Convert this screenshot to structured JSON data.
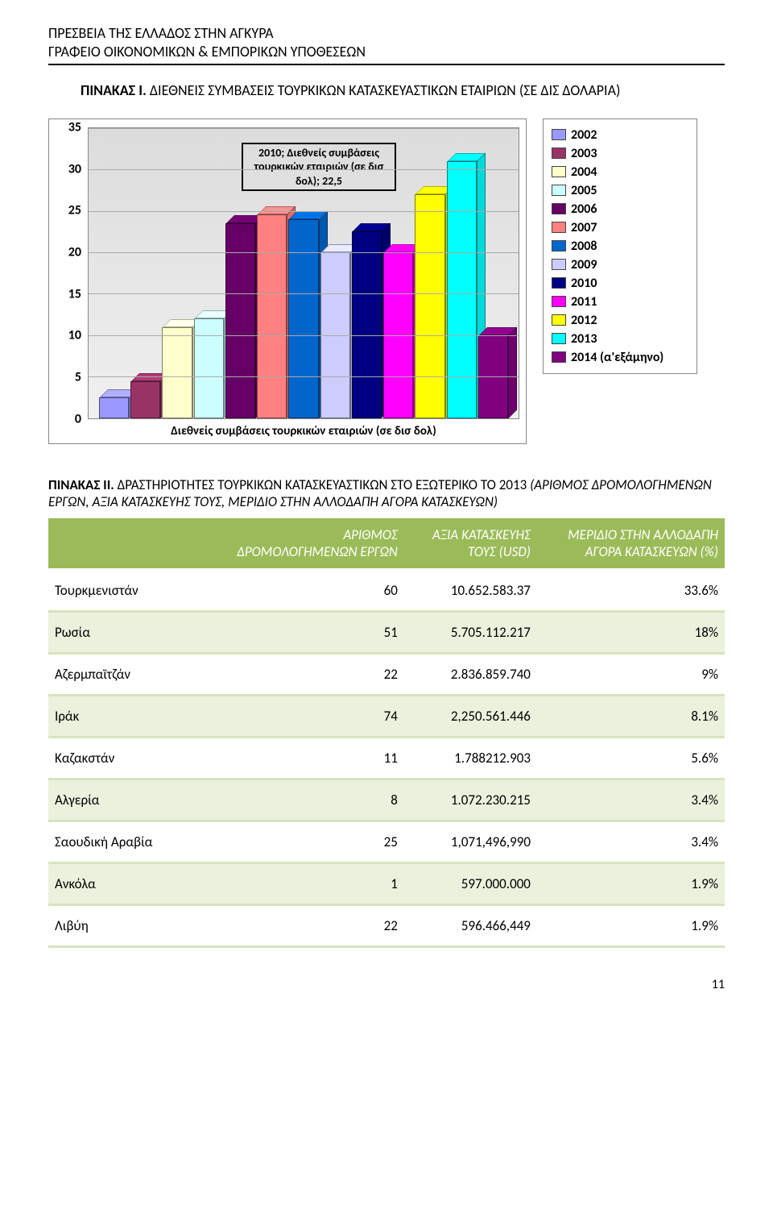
{
  "header": {
    "line1": "ΠΡΕΣΒΕΙΑ ΤΗΣ ΕΛΛΑΔΟΣ ΣΤΗΝ ΑΓΚΥΡΑ",
    "line2": "ΓΡΑΦΕΙΟ ΟΙΚΟΝΟΜΙΚΩΝ & ΕΜΠΟΡΙΚΩΝ ΥΠΟΘΕΣΕΩΝ"
  },
  "chart_section": {
    "title_lead": "ΠΙΝΑΚΑΣ I. ",
    "title_rest": "ΔΙΕΘΝΕΙΣ ΣΥΜΒΑΣΕΙΣ ΤΟΥΡΚΙΚΩΝ ΚΑΤΑΣΚΕΥΑΣΤΙΚΩΝ ΕΤΑΙΡΙΩΝ (ΣΕ ΔΙΣ ΔΟΛΑΡΙΑ)"
  },
  "chart": {
    "type": "bar",
    "ylim": [
      0,
      35
    ],
    "ytick_step": 5,
    "yticks": [
      0,
      5,
      10,
      15,
      20,
      25,
      30,
      35
    ],
    "x_label": "Διεθνείς συμβάσεις τουρκικών εταιριών (σε δισ δολ)",
    "callout_text": "2010; Διεθνείς συμβάσεις τουρκικών εταιριών (σε δισ δολ); 22,5",
    "plot_background": "#e0e0e0",
    "grid_color": "#aaaaaa",
    "series": [
      {
        "label": "2002",
        "value": 2.5,
        "color": "#9999ff"
      },
      {
        "label": "2003",
        "value": 4.5,
        "color": "#993366"
      },
      {
        "label": "2004",
        "value": 11,
        "color": "#ffffcc"
      },
      {
        "label": "2005",
        "value": 12,
        "color": "#ccffff"
      },
      {
        "label": "2006",
        "value": 23.5,
        "color": "#660066"
      },
      {
        "label": "2007",
        "value": 24.6,
        "color": "#ff8080"
      },
      {
        "label": "2008",
        "value": 24,
        "color": "#0066cc"
      },
      {
        "label": "2009",
        "value": 20,
        "color": "#ccccff"
      },
      {
        "label": "2010",
        "value": 22.5,
        "color": "#000080"
      },
      {
        "label": "2011",
        "value": 20,
        "color": "#ff00ff"
      },
      {
        "label": "2012",
        "value": 27,
        "color": "#ffff00"
      },
      {
        "label": "2013",
        "value": 31,
        "color": "#00ffff"
      },
      {
        "label": "2014 (α'εξάμηνο)",
        "value": 10,
        "color": "#800080"
      }
    ]
  },
  "table_section": {
    "title_lead": "ΠΙΝΑΚΑΣ II. ",
    "title_rest_plain": "ΔΡΑΣΤΗΡΙΟΤΗΤΕΣ ΤΟΥΡΚΙΚΩΝ ΚΑΤΑΣΚΕΥΑΣΤΙΚΩΝ ΣΤΟ ΕΞΩΤΕΡΙΚΟ ΤΟ 2013 ",
    "title_rest_italic": "(ΑΡΙΘΜΟΣ ΔΡΟΜΟΛΟΓΗΜΕΝΩΝ ΕΡΓΩΝ, ΑΞΙΑ ΚΑΤΑΣΚΕΥΗΣ ΤΟΥΣ, ΜΕΡΙΔΙΟ ΣΤΗΝ ΑΛΛΟΔΑΠΗ ΑΓΟΡΑ ΚΑΤΑΣΚΕΥΩΝ)"
  },
  "table": {
    "header_bg": "#9bbb59",
    "header_fg": "#ffffff",
    "stripe_bg": "#eaf1dd",
    "columns": [
      "",
      "ΑΡΙΘΜΟΣ ΔΡΟΜΟΛΟΓΗΜΕΝΩΝ ΕΡΓΩΝ",
      "ΑΞΙΑ ΚΑΤΑΣΚΕΥΗΣ ΤΟΥΣ (USD)",
      "ΜΕΡΙΔΙΟ ΣΤΗΝ ΑΛΛΟΔΑΠΗ ΑΓΟΡΑ ΚΑΤΑΣΚΕΥΩΝ (%)"
    ],
    "rows": [
      [
        "Τουρκμενιστάν",
        "60",
        "10.652.583.37",
        "33.6%"
      ],
      [
        "Ρωσία",
        "51",
        "5.705.112.217",
        "18%"
      ],
      [
        "Αζερμπαϊτζάν",
        "22",
        "2.836.859.740",
        "9%"
      ],
      [
        "Ιράκ",
        "74",
        "2,250.561.446",
        "8.1%"
      ],
      [
        "Καζακστάν",
        "11",
        "1.788212.903",
        "5.6%"
      ],
      [
        "Αλγερία",
        "8",
        "1.072.230.215",
        "3.4%"
      ],
      [
        "Σαουδική Αραβία",
        "25",
        "1,071,496,990",
        "3.4%"
      ],
      [
        "Ανκόλα",
        "1",
        "597.000.000",
        "1.9%"
      ],
      [
        "Λιβύη",
        "22",
        "596.466,449",
        "1.9%"
      ]
    ]
  },
  "page_number": "11"
}
